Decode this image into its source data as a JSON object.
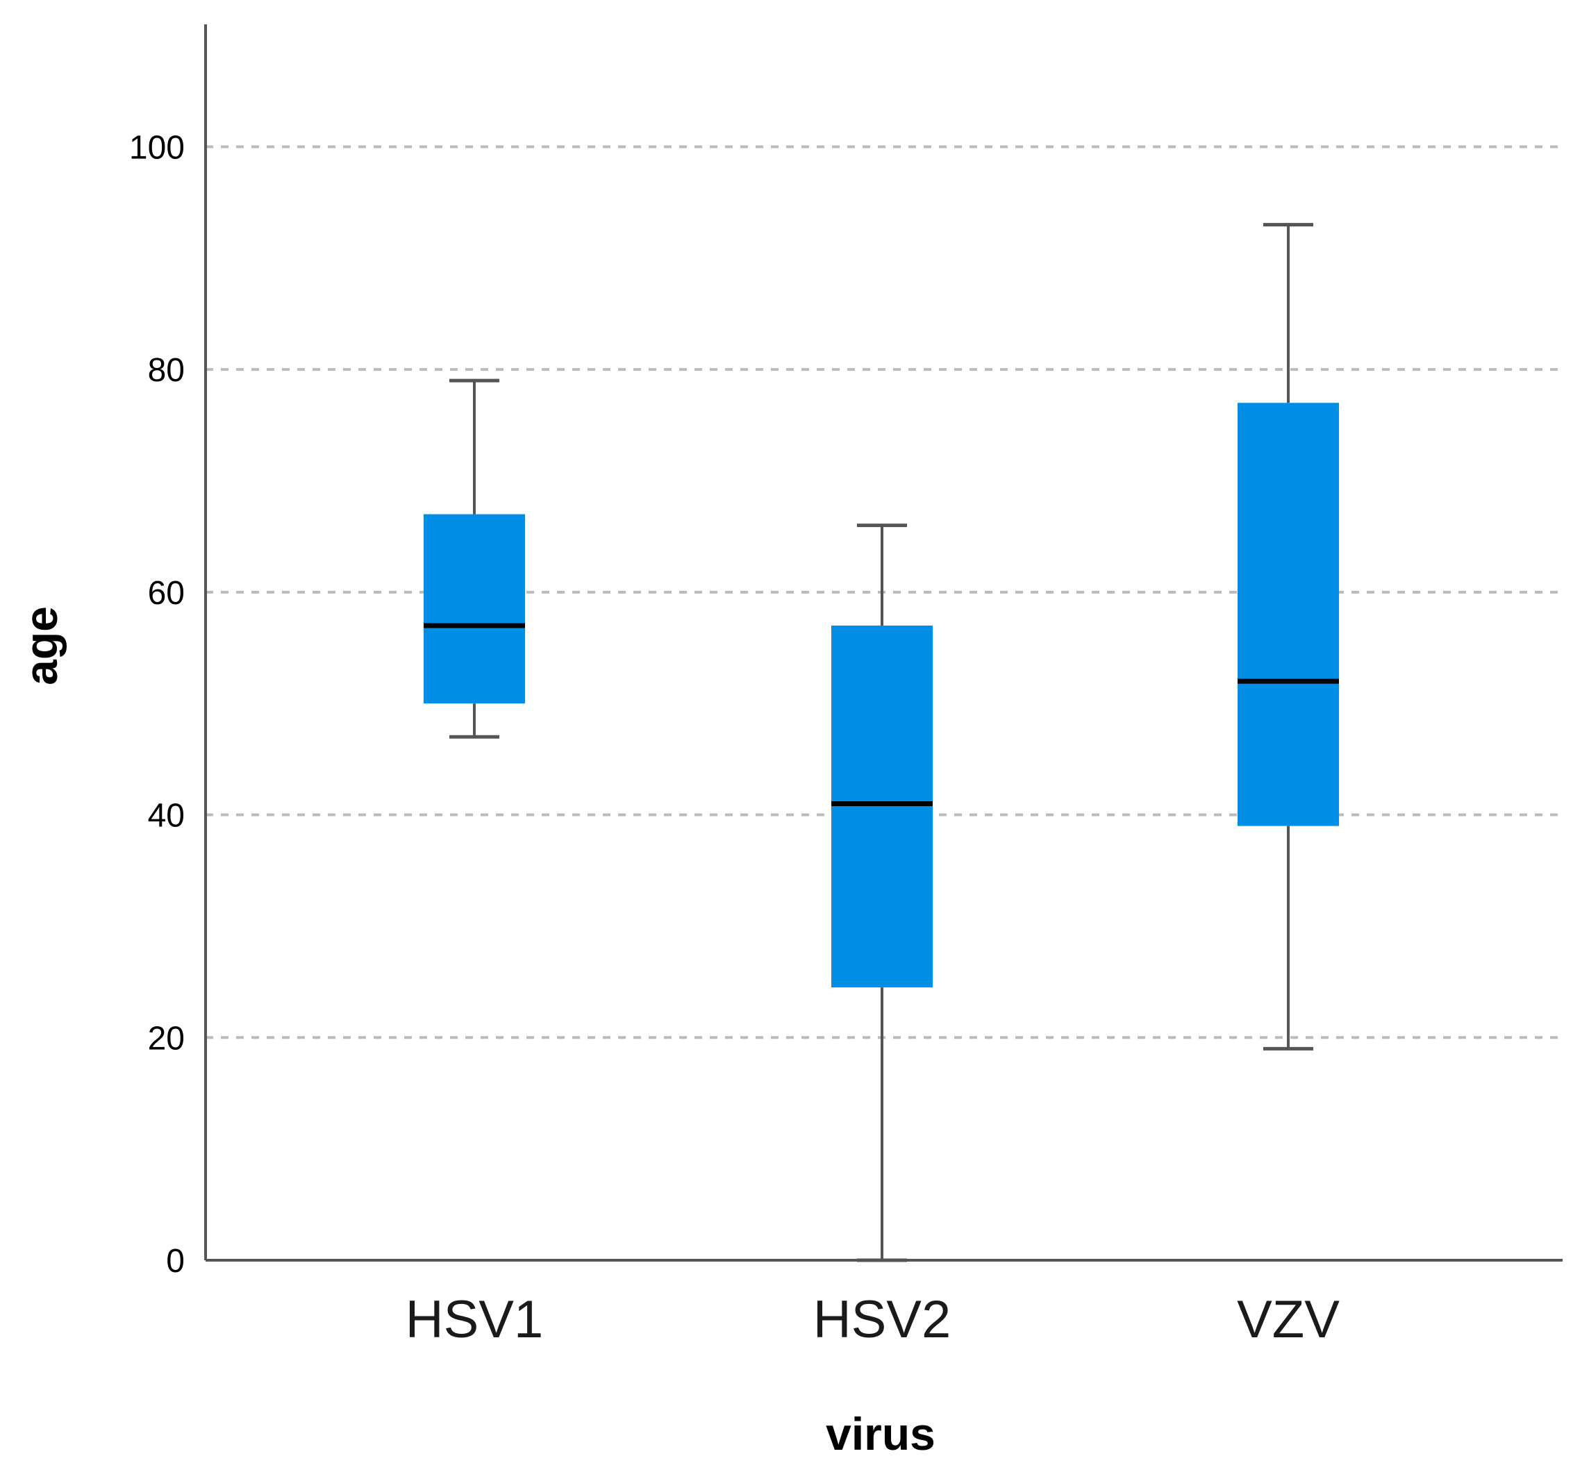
{
  "chart_data": {
    "type": "boxplot",
    "title": "",
    "xlabel": "virus",
    "ylabel": "age",
    "ylim": [
      0,
      111
    ],
    "yticks": [
      0,
      20,
      40,
      60,
      80,
      100
    ],
    "grid": "horizontal dashed",
    "categories": [
      "HSV1",
      "HSV2",
      "VZV"
    ],
    "series": [
      {
        "name": "HSV1",
        "min": 47,
        "q1": 50,
        "median": 57,
        "q3": 67,
        "max": 79
      },
      {
        "name": "HSV2",
        "min": 0,
        "q1": 24.5,
        "median": 41,
        "q3": 57,
        "max": 66
      },
      {
        "name": "VZV",
        "min": 19,
        "q1": 39,
        "median": 52,
        "q3": 77,
        "max": 93
      }
    ],
    "colors": {
      "box": "#008EE6",
      "median": "#000000",
      "whisker": "#555555",
      "grid": "#bbbbbb",
      "axis": "#555555"
    }
  }
}
